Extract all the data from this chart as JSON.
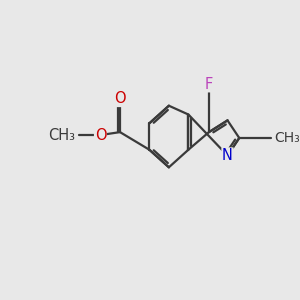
{
  "bg_color": "#e8e8e8",
  "bond_color": "#3a3a3a",
  "bond_width": 1.6,
  "atom_colors": {
    "C": "#3a3a3a",
    "N": "#0000cc",
    "O": "#cc0000",
    "F": "#bb44bb"
  },
  "font_size": 10.5,
  "fig_bg": "#e8e8e8",
  "lw": 1.6,
  "sep": 0.09,
  "shrink": 0.13
}
